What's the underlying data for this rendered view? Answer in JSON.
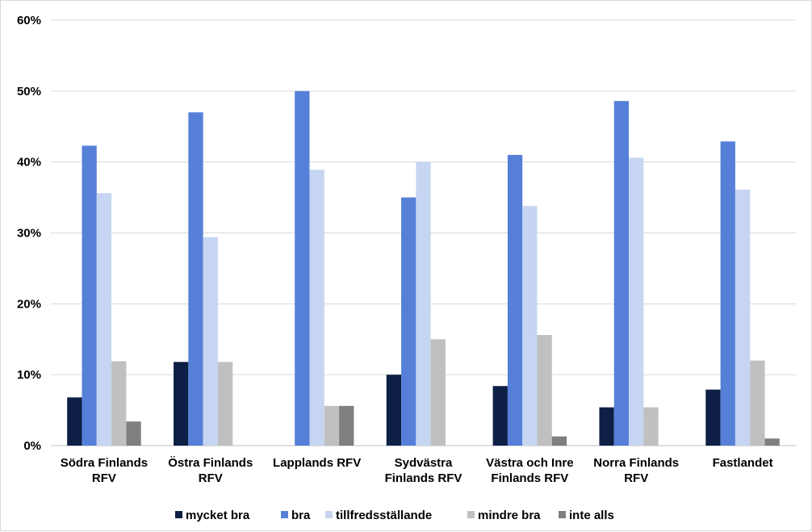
{
  "chart_data": {
    "type": "bar",
    "categories": [
      [
        "Södra Finlands",
        "RFV"
      ],
      [
        "Östra Finlands",
        "RFV"
      ],
      [
        "Lapplands RFV"
      ],
      [
        "Sydvästra",
        "Finlands RFV"
      ],
      [
        "Västra och Inre",
        "Finlands RFV"
      ],
      [
        "Norra Finlands",
        "RFV"
      ],
      [
        "Fastlandet"
      ]
    ],
    "series": [
      {
        "name": "mycket bra",
        "color": "#0e1f45",
        "values": [
          6.8,
          11.8,
          0,
          10.0,
          8.4,
          5.4,
          7.9
        ]
      },
      {
        "name": "bra",
        "color": "#5680d8",
        "values": [
          42.3,
          47.0,
          50.0,
          35.0,
          41.0,
          48.6,
          42.9
        ]
      },
      {
        "name": "tillfredsställande",
        "color": "#c6d5f2",
        "values": [
          35.6,
          29.4,
          38.9,
          40.0,
          33.8,
          40.6,
          36.1
        ]
      },
      {
        "name": "mindre bra",
        "color": "#c0c0c0",
        "values": [
          11.9,
          11.8,
          5.6,
          15.0,
          15.6,
          5.4,
          12.0
        ]
      },
      {
        "name": "inte alls",
        "color": "#7f7f7f",
        "values": [
          3.4,
          0,
          5.6,
          0,
          1.3,
          0,
          1.0
        ]
      }
    ],
    "y_ticks": [
      "0%",
      "10%",
      "20%",
      "30%",
      "40%",
      "50%",
      "60%"
    ],
    "ylim": [
      0,
      60
    ],
    "grid": true,
    "legend_position": "bottom"
  }
}
